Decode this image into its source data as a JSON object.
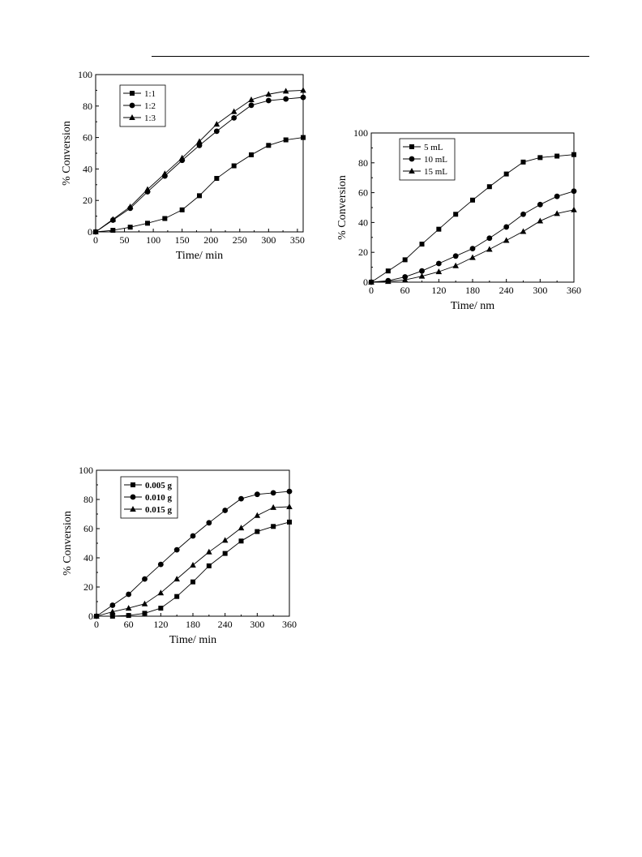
{
  "chart_data": [
    {
      "type": "line",
      "xlabel": "Time/ min",
      "ylabel": "% Conversion",
      "xlim": [
        0,
        360
      ],
      "ylim": [
        0,
        100
      ],
      "xticks": [
        0,
        50,
        100,
        150,
        200,
        250,
        300,
        350
      ],
      "yticks": [
        0,
        20,
        40,
        60,
        80,
        100
      ],
      "x": [
        0,
        30,
        60,
        90,
        120,
        150,
        180,
        210,
        240,
        270,
        300,
        330,
        360
      ],
      "legend_position": "top-left",
      "grid": false,
      "series": [
        {
          "name": "1:1",
          "marker": "square",
          "values": [
            0,
            1,
            3,
            5.5,
            8.5,
            14,
            23,
            34,
            42,
            49,
            55,
            58.5,
            60
          ]
        },
        {
          "name": "1:2",
          "marker": "circle",
          "values": [
            0,
            7.5,
            15,
            25.5,
            35.5,
            45.5,
            55,
            64,
            72.5,
            80.5,
            83.5,
            84.5,
            85.5
          ]
        },
        {
          "name": "1:3",
          "marker": "triangle",
          "values": [
            0,
            8,
            16,
            27,
            37,
            47,
            57.5,
            68.5,
            76.5,
            84,
            87.5,
            89.5,
            90
          ]
        }
      ]
    },
    {
      "type": "line",
      "xlabel": "Time/ nm",
      "ylabel": "% Conversion",
      "xlim": [
        0,
        360
      ],
      "ylim": [
        0,
        100
      ],
      "xticks": [
        0,
        60,
        120,
        180,
        240,
        300,
        360
      ],
      "yticks": [
        0,
        20,
        40,
        60,
        80,
        100
      ],
      "x": [
        0,
        30,
        60,
        90,
        120,
        150,
        180,
        210,
        240,
        270,
        300,
        330,
        360
      ],
      "legend_position": "top-left",
      "grid": false,
      "series": [
        {
          "name": "5 mL",
          "marker": "square",
          "values": [
            0,
            7.5,
            15,
            25.5,
            35.5,
            45.5,
            55,
            64,
            72.5,
            80.5,
            83.5,
            84.5,
            85.5
          ]
        },
        {
          "name": "10 mL",
          "marker": "circle",
          "values": [
            0,
            1,
            3.5,
            7.5,
            12.5,
            17.5,
            22.5,
            29.5,
            37,
            45.5,
            52,
            57.5,
            61
          ]
        },
        {
          "name": "15 mL",
          "marker": "triangle",
          "values": [
            0,
            0.5,
            1.5,
            4,
            7,
            11,
            16.5,
            22,
            28,
            34,
            41,
            46,
            48.5
          ]
        }
      ]
    },
    {
      "type": "line",
      "xlabel": "Time/ min",
      "ylabel": "% Conversion",
      "xlim": [
        0,
        360
      ],
      "ylim": [
        0,
        100
      ],
      "xticks": [
        0,
        60,
        120,
        180,
        240,
        300,
        360
      ],
      "yticks": [
        0,
        20,
        40,
        60,
        80,
        100
      ],
      "x": [
        0,
        30,
        60,
        90,
        120,
        150,
        180,
        210,
        240,
        270,
        300,
        330,
        360
      ],
      "legend_position": "top-left",
      "legend_bold": true,
      "grid": false,
      "series": [
        {
          "name": "0.005 g",
          "marker": "square",
          "values": [
            0,
            0,
            0.5,
            2,
            5.5,
            13.5,
            23.5,
            34.5,
            43,
            51.5,
            58,
            61.5,
            64.5
          ]
        },
        {
          "name": "0.010 g",
          "marker": "circle",
          "values": [
            0,
            7.5,
            15,
            25.5,
            35.5,
            45.5,
            55,
            64,
            72.5,
            80.5,
            83.5,
            84.5,
            85.5
          ]
        },
        {
          "name": "0.015 g",
          "marker": "triangle",
          "values": [
            0,
            3,
            5.5,
            8.5,
            16,
            25.5,
            35,
            44,
            52,
            60.5,
            69,
            74.5,
            75
          ]
        }
      ]
    }
  ]
}
